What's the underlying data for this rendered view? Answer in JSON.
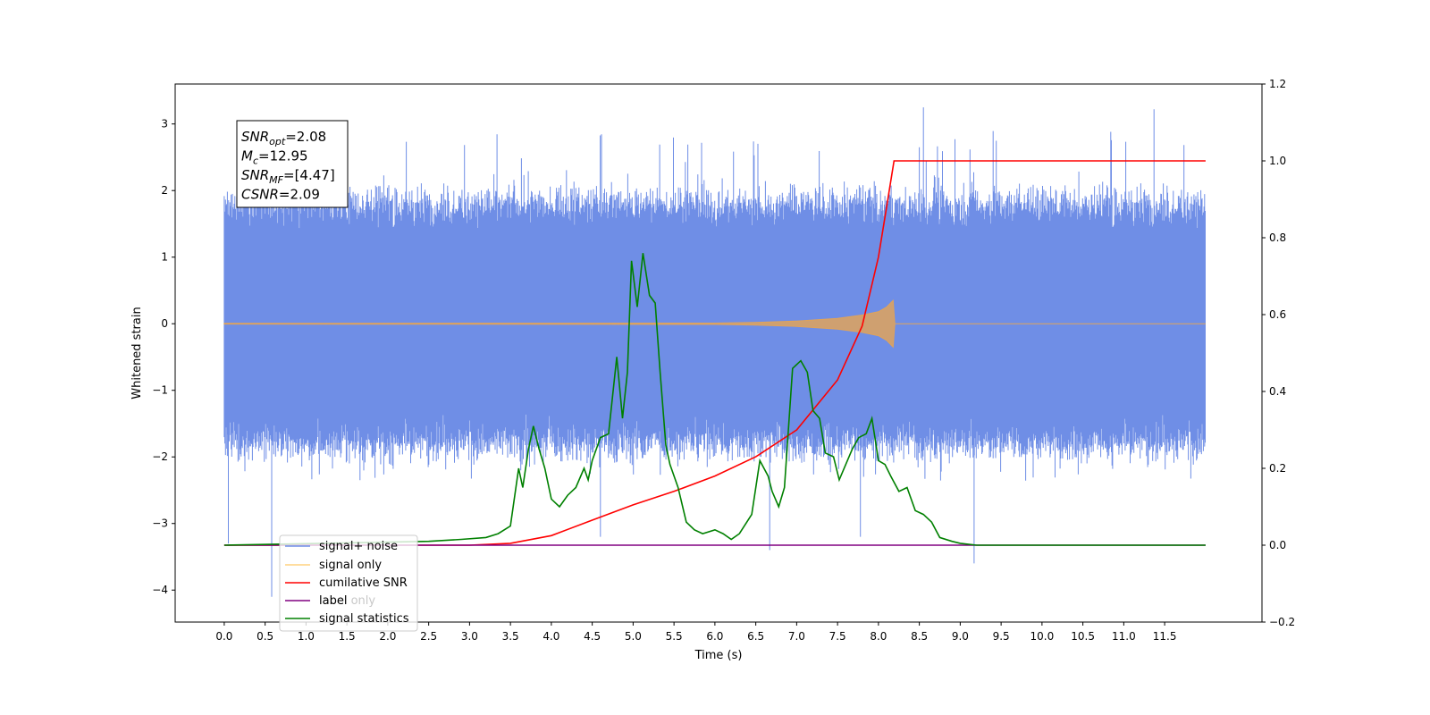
{
  "chart_data": {
    "type": "line",
    "xlabel": "Time (s)",
    "ylabel": "Whitened strain",
    "xlim": [
      -0.6,
      12.69
    ],
    "ylim": [
      -4.48,
      3.6
    ],
    "y2lim": [
      -0.2,
      1.2
    ],
    "x_ticks": [
      0.0,
      0.5,
      1.0,
      1.5,
      2.0,
      2.5,
      3.0,
      3.5,
      4.0,
      4.5,
      5.0,
      5.5,
      6.0,
      6.5,
      7.0,
      7.5,
      8.0,
      8.5,
      9.0,
      9.5,
      10.0,
      10.5,
      11.0,
      11.5
    ],
    "x_tick_labels": [
      "0.0",
      "0.5",
      "1.0",
      "1.5",
      "2.0",
      "2.5",
      "3.0",
      "3.5",
      "4.0",
      "4.5",
      "5.0",
      "5.5",
      "6.0",
      "6.5",
      "7.0",
      "7.5",
      "8.0",
      "8.5",
      "9.0",
      "9.5",
      "10.0",
      "10.5",
      "11.0",
      "11.5"
    ],
    "y_ticks": [
      3,
      2,
      1,
      0,
      -1,
      -2,
      -3,
      -4
    ],
    "y_tick_labels": [
      "3",
      "2",
      "1",
      "0",
      "−1",
      "−2",
      "−3",
      "−4"
    ],
    "y2_ticks": [
      1.2,
      1.0,
      0.8,
      0.6,
      0.4,
      0.2,
      0.0,
      -0.2
    ],
    "y2_tick_labels": [
      "1.2",
      "1.0",
      "0.8",
      "0.6",
      "0.4",
      "0.2",
      "0.0",
      "−0.2"
    ],
    "grid": false,
    "legend_position": "lower-left",
    "annotation": {
      "lines": [
        {
          "var": "SNR",
          "sub": "opt",
          "value": "=2.08"
        },
        {
          "var": "M",
          "sub": "c",
          "value": "=12.95"
        },
        {
          "var": "SNR",
          "sub": "MF",
          "value": "=[4.47]"
        },
        {
          "var": "CSNR",
          "sub": "",
          "value": "=2.09"
        }
      ]
    },
    "noise_envelope": {
      "name": "signal+ noise",
      "color": "#6f8ee6",
      "x_range": [
        0.0,
        12.0
      ],
      "typical_range": [
        -1.8,
        1.8
      ],
      "peak_range": [
        -2.6,
        3.25
      ],
      "outliers": [
        {
          "x": 0.05,
          "y": -3.3
        },
        {
          "x": 0.58,
          "y": -4.1
        },
        {
          "x": 4.6,
          "y": -3.2
        },
        {
          "x": 6.67,
          "y": -3.4
        },
        {
          "x": 7.78,
          "y": -3.2
        },
        {
          "x": 9.17,
          "y": -3.6
        },
        {
          "x": 8.55,
          "y": 3.25
        },
        {
          "x": 11.37,
          "y": 3.22
        }
      ]
    },
    "series": [
      {
        "name": "signal only",
        "color": "#e0a35a",
        "axis": "left",
        "x": [
          0.0,
          6.0,
          6.5,
          7.0,
          7.5,
          7.8,
          8.0,
          8.1,
          8.18,
          8.2,
          12.0
        ],
        "envelope": [
          0.005,
          0.01,
          0.02,
          0.04,
          0.08,
          0.13,
          0.18,
          0.25,
          0.35,
          0.0,
          0.0
        ]
      },
      {
        "name": "cumilative SNR",
        "color": "#ff0000",
        "axis": "right",
        "x": [
          0.0,
          3.0,
          3.5,
          4.0,
          4.5,
          5.0,
          5.5,
          6.0,
          6.5,
          7.0,
          7.5,
          7.8,
          8.0,
          8.1,
          8.19,
          8.2,
          12.0
        ],
        "values": [
          0.0,
          0.0,
          0.005,
          0.025,
          0.065,
          0.105,
          0.14,
          0.18,
          0.23,
          0.3,
          0.43,
          0.57,
          0.75,
          0.88,
          1.0,
          1.0,
          1.0
        ]
      },
      {
        "name": "label",
        "color": "#800080",
        "axis": "right",
        "x": [
          0.0,
          12.0
        ],
        "values": [
          0.0,
          0.0
        ]
      },
      {
        "name": "signal statistics",
        "color": "#008000",
        "axis": "right",
        "x": [
          0.0,
          2.5,
          2.9,
          3.2,
          3.35,
          3.5,
          3.6,
          3.65,
          3.72,
          3.78,
          3.85,
          3.92,
          4.0,
          4.1,
          4.2,
          4.3,
          4.4,
          4.45,
          4.5,
          4.6,
          4.7,
          4.8,
          4.87,
          4.93,
          4.98,
          5.05,
          5.12,
          5.2,
          5.27,
          5.33,
          5.4,
          5.45,
          5.55,
          5.65,
          5.75,
          5.85,
          6.0,
          6.1,
          6.2,
          6.3,
          6.45,
          6.55,
          6.65,
          6.7,
          6.78,
          6.85,
          6.95,
          7.05,
          7.13,
          7.2,
          7.28,
          7.35,
          7.45,
          7.52,
          7.6,
          7.68,
          7.76,
          7.85,
          7.92,
          8.0,
          8.08,
          8.15,
          8.25,
          8.35,
          8.45,
          8.55,
          8.65,
          8.75,
          8.9,
          9.0,
          9.2,
          9.5,
          12.0
        ],
        "values": [
          0.0,
          0.01,
          0.015,
          0.02,
          0.03,
          0.05,
          0.2,
          0.15,
          0.25,
          0.31,
          0.25,
          0.2,
          0.12,
          0.1,
          0.13,
          0.15,
          0.2,
          0.17,
          0.22,
          0.28,
          0.29,
          0.49,
          0.33,
          0.45,
          0.74,
          0.62,
          0.76,
          0.65,
          0.63,
          0.45,
          0.26,
          0.21,
          0.15,
          0.06,
          0.04,
          0.03,
          0.04,
          0.03,
          0.015,
          0.03,
          0.08,
          0.22,
          0.18,
          0.14,
          0.1,
          0.15,
          0.46,
          0.48,
          0.45,
          0.35,
          0.33,
          0.24,
          0.23,
          0.17,
          0.21,
          0.25,
          0.28,
          0.29,
          0.33,
          0.22,
          0.21,
          0.18,
          0.14,
          0.15,
          0.09,
          0.08,
          0.06,
          0.02,
          0.01,
          0.005,
          0.0,
          0.0,
          0.0
        ]
      }
    ],
    "legend": [
      {
        "label": "signal+ noise",
        "color": "#6f8ee6",
        "alpha": 1.0
      },
      {
        "label": "signal only",
        "color": "#ffa500",
        "alpha": 0.5
      },
      {
        "label": "cumilative SNR",
        "color": "#ff0000",
        "alpha": 1.0
      },
      {
        "label": "label",
        "color": "#800080",
        "alpha": 1.0
      },
      {
        "label": "label only",
        "color": "#c8c8c8",
        "alpha": 1.0
      },
      {
        "label": "signal statistics",
        "color": "#008000",
        "alpha": 1.0
      }
    ]
  }
}
